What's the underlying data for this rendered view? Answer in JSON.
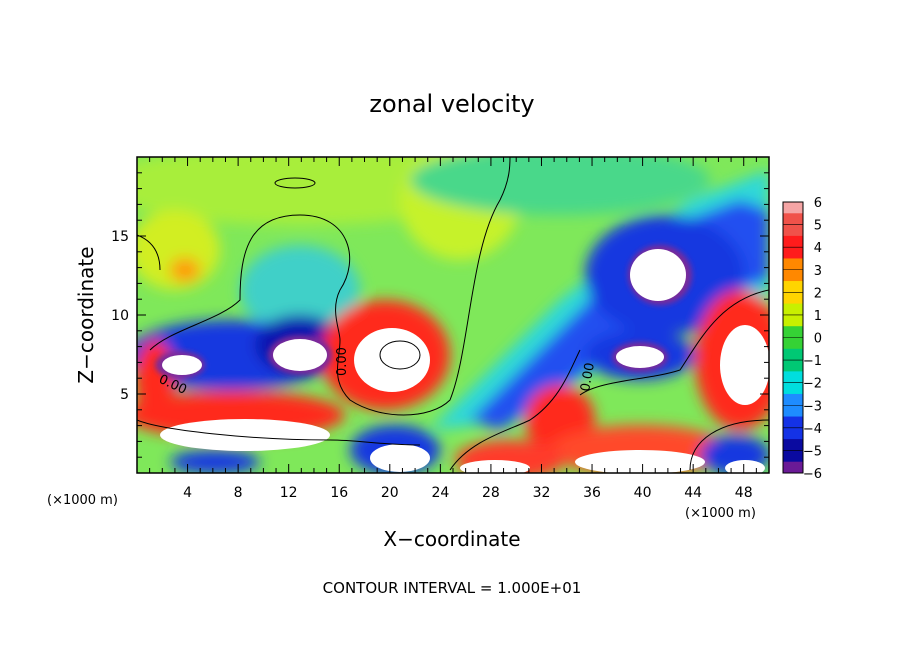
{
  "chart_data": {
    "type": "heatmap",
    "title": "zonal velocity",
    "xlabel": "X−coordinate",
    "ylabel": "Z−coordinate",
    "x_unit": "(×1000 m)",
    "z_unit": "(×1000 m)",
    "xlim": [
      0,
      50
    ],
    "ylim": [
      0,
      20
    ],
    "x_ticks": [
      4,
      8,
      12,
      16,
      20,
      24,
      28,
      32,
      36,
      40,
      44,
      48
    ],
    "x_tick_labels": [
      "4",
      "8",
      "12",
      "16",
      "20",
      "24",
      "28",
      "32",
      "36",
      "40",
      "44",
      "48"
    ],
    "y_ticks": [
      5,
      10,
      15
    ],
    "y_tick_labels": [
      "5",
      "10",
      "15"
    ],
    "colorbar": {
      "levels": [
        6,
        5,
        4,
        3,
        2,
        1,
        0,
        -1,
        -2,
        -3,
        -4,
        -5,
        -6
      ],
      "labels": [
        "6",
        "5",
        "4",
        "3",
        "2",
        "1",
        "0",
        "−1",
        "−2",
        "−3",
        "−4",
        "−5",
        "−6"
      ],
      "colors": [
        "#f5a5a5",
        "#f0524a",
        "#ff1c1c",
        "#ff8800",
        "#ffd400",
        "#c8f000",
        "#35d235",
        "#00c874",
        "#00dede",
        "#1e8cff",
        "#1432e6",
        "#0a0aa0",
        "#6a1a96"
      ]
    },
    "contour_labels": [
      "0.00",
      "0.00",
      "0.00"
    ],
    "contour_interval_text": "CONTOUR INTERVAL = 1.000E+01",
    "background": "#6ee46e"
  }
}
